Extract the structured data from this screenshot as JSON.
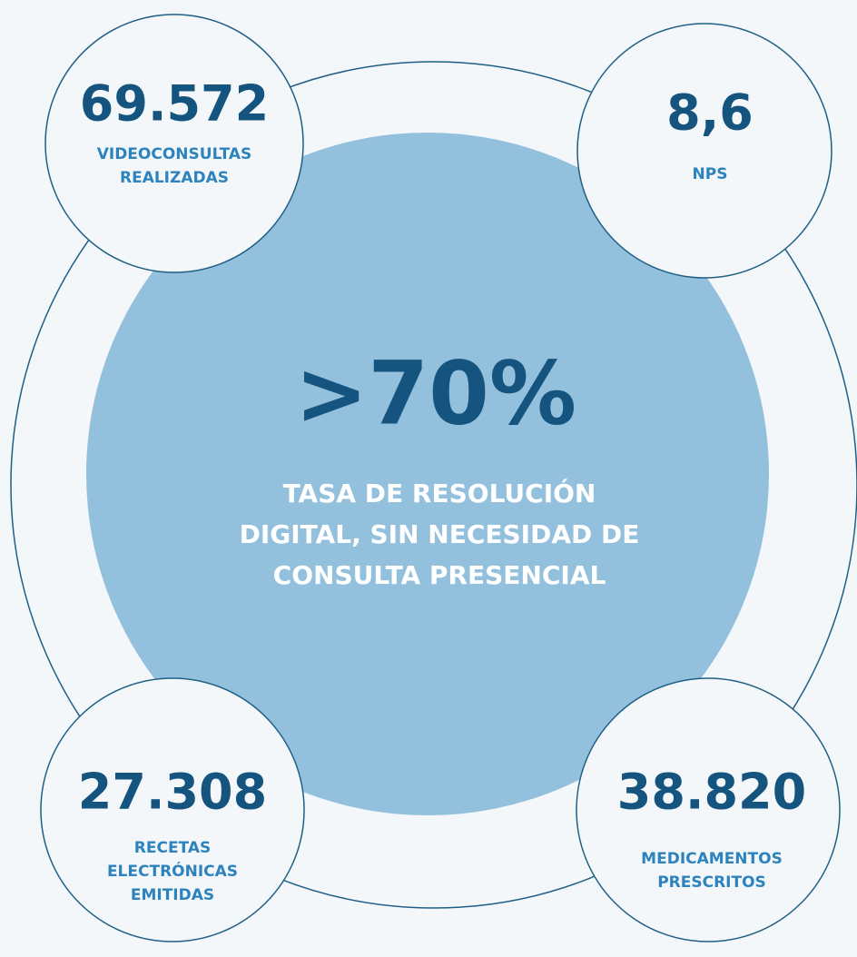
{
  "center": {
    "value": ">70%",
    "label": [
      "TASA DE RESOLUCIÓN",
      "DIGITAL, SIN NECESIDAD DE",
      "CONSULTA PRESENCIAL"
    ]
  },
  "stats": [
    {
      "value": "69.572",
      "label": [
        "VIDEOCONSULTAS",
        "REALIZADAS"
      ]
    },
    {
      "value": "8,6",
      "label": [
        "NPS"
      ]
    },
    {
      "value": "27.308",
      "label": [
        "RECETAS",
        "ELECTRÓNICAS",
        "EMITIDAS"
      ]
    },
    {
      "value": "38.820",
      "label": [
        "MEDICAMENTOS",
        "PRESCRITOS"
      ]
    }
  ]
}
